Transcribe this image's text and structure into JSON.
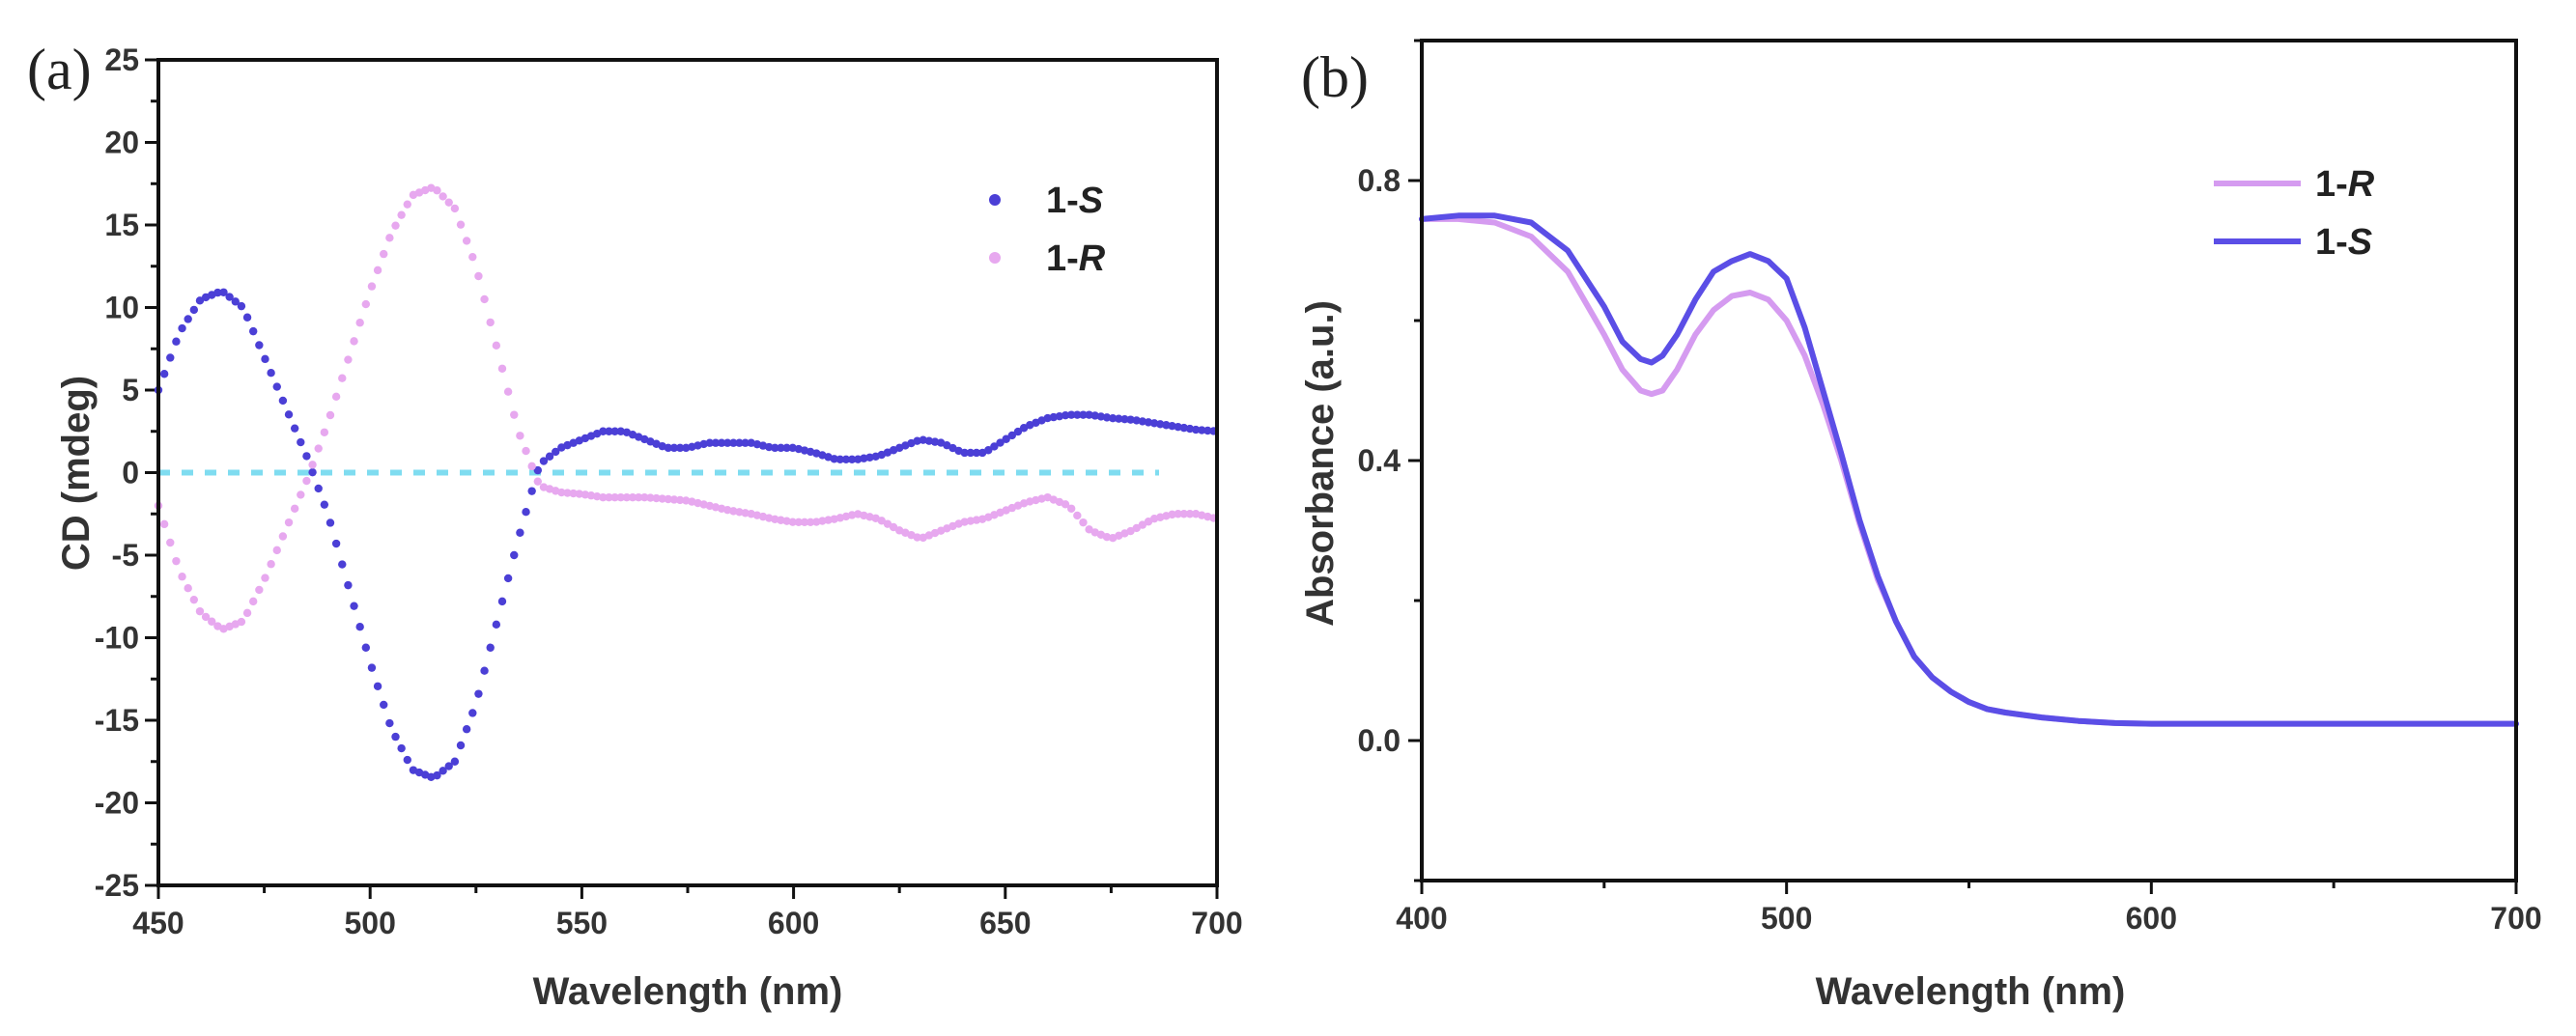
{
  "chart_data": [
    {
      "panel": "(a)",
      "type": "scatter",
      "xlabel": "Wavelength (nm)",
      "ylabel": "CD (mdeg)",
      "xlim": [
        450,
        700
      ],
      "ylim": [
        -25,
        25
      ],
      "xticks": [
        450,
        500,
        550,
        600,
        650,
        700
      ],
      "yticks": [
        -25,
        -20,
        -15,
        -10,
        -5,
        0,
        5,
        10,
        15,
        20,
        25
      ],
      "legend_position": "top-right",
      "baseline": {
        "y": 0,
        "color": "#7fdcf0",
        "style": "dashed"
      },
      "series": [
        {
          "name_prefix": "1-",
          "name_italic": "S",
          "color": "#4b3fd6",
          "x": [
            450,
            455,
            460,
            465,
            470,
            475,
            480,
            485,
            490,
            495,
            500,
            505,
            510,
            515,
            520,
            525,
            530,
            535,
            540,
            545,
            550,
            555,
            560,
            565,
            570,
            575,
            580,
            585,
            590,
            595,
            600,
            605,
            610,
            615,
            620,
            625,
            630,
            635,
            640,
            645,
            650,
            655,
            660,
            665,
            670,
            675,
            680,
            685,
            690,
            695,
            700
          ],
          "values": [
            5,
            8.5,
            10.5,
            11,
            10,
            7,
            4,
            1,
            -2.5,
            -7,
            -11.5,
            -15.5,
            -18,
            -18.5,
            -17.5,
            -14,
            -9,
            -4,
            0.5,
            1.5,
            2,
            2.5,
            2.5,
            2,
            1.5,
            1.5,
            1.8,
            1.8,
            1.8,
            1.5,
            1.5,
            1.2,
            0.8,
            0.8,
            1,
            1.5,
            2,
            1.8,
            1.2,
            1.2,
            2,
            2.8,
            3.3,
            3.5,
            3.5,
            3.3,
            3.2,
            3,
            2.8,
            2.6,
            2.5
          ]
        },
        {
          "name_prefix": "1-",
          "name_italic": "R",
          "color": "#e7a8ef",
          "x": [
            450,
            455,
            460,
            465,
            470,
            475,
            480,
            485,
            490,
            495,
            500,
            505,
            510,
            515,
            520,
            525,
            530,
            535,
            540,
            545,
            550,
            555,
            560,
            565,
            570,
            575,
            580,
            585,
            590,
            595,
            600,
            605,
            610,
            615,
            620,
            625,
            630,
            635,
            640,
            645,
            650,
            655,
            660,
            665,
            670,
            675,
            680,
            685,
            690,
            695,
            700
          ],
          "values": [
            -2,
            -6,
            -8.5,
            -9.5,
            -9,
            -6.5,
            -3.5,
            -0.5,
            3,
            7,
            11,
            14.5,
            16.8,
            17.3,
            16,
            12.5,
            7.5,
            2.5,
            -0.8,
            -1.2,
            -1.3,
            -1.5,
            -1.5,
            -1.5,
            -1.6,
            -1.7,
            -2,
            -2.3,
            -2.5,
            -2.8,
            -3,
            -3,
            -2.8,
            -2.5,
            -2.8,
            -3.5,
            -4,
            -3.5,
            -3,
            -2.8,
            -2.3,
            -1.8,
            -1.5,
            -2,
            -3.5,
            -4,
            -3.5,
            -2.8,
            -2.5,
            -2.5,
            -2.8
          ]
        }
      ]
    },
    {
      "panel": "(b)",
      "type": "line",
      "xlabel": "Wavelength (nm)",
      "ylabel": "Absorbance (a.u.)",
      "xlim": [
        400,
        700
      ],
      "ylim": [
        -0.2,
        1.0
      ],
      "xticks": [
        400,
        500,
        600,
        700
      ],
      "yticks": [
        0.0,
        0.4,
        0.8
      ],
      "legend_position": "top-right",
      "series": [
        {
          "name_prefix": "1-",
          "name_italic": "R",
          "color": "#d59bf0",
          "x": [
            400,
            410,
            420,
            430,
            440,
            450,
            455,
            460,
            463,
            466,
            470,
            475,
            480,
            485,
            490,
            495,
            500,
            505,
            510,
            515,
            520,
            525,
            530,
            535,
            540,
            545,
            550,
            555,
            560,
            570,
            580,
            590,
            600,
            620,
            650,
            700
          ],
          "values": [
            0.745,
            0.745,
            0.74,
            0.72,
            0.67,
            0.58,
            0.53,
            0.5,
            0.495,
            0.5,
            0.53,
            0.58,
            0.615,
            0.635,
            0.64,
            0.63,
            0.6,
            0.55,
            0.48,
            0.4,
            0.31,
            0.23,
            0.17,
            0.12,
            0.09,
            0.07,
            0.055,
            0.045,
            0.04,
            0.033,
            0.028,
            0.025,
            0.024,
            0.024,
            0.024,
            0.024
          ]
        },
        {
          "name_prefix": "1-",
          "name_italic": "S",
          "color": "#5b4ee6",
          "x": [
            400,
            410,
            420,
            430,
            440,
            450,
            455,
            460,
            463,
            466,
            470,
            475,
            480,
            485,
            490,
            495,
            500,
            505,
            510,
            515,
            520,
            525,
            530,
            535,
            540,
            545,
            550,
            555,
            560,
            570,
            580,
            590,
            600,
            620,
            650,
            700
          ],
          "values": [
            0.745,
            0.75,
            0.75,
            0.74,
            0.7,
            0.62,
            0.57,
            0.545,
            0.54,
            0.55,
            0.58,
            0.63,
            0.67,
            0.685,
            0.695,
            0.685,
            0.66,
            0.59,
            0.5,
            0.41,
            0.315,
            0.235,
            0.17,
            0.12,
            0.09,
            0.07,
            0.055,
            0.045,
            0.04,
            0.033,
            0.028,
            0.025,
            0.024,
            0.024,
            0.024,
            0.024
          ]
        }
      ]
    }
  ]
}
